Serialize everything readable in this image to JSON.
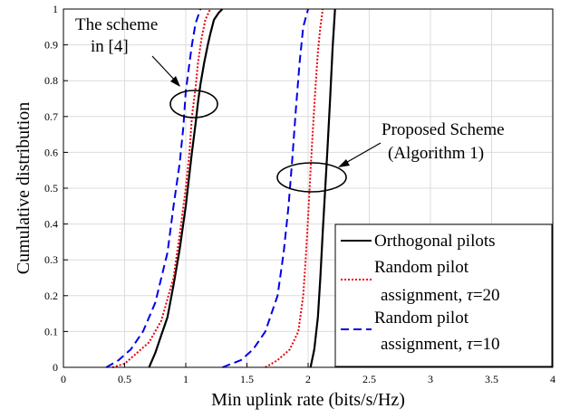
{
  "chart_data": {
    "type": "line",
    "xlabel": "Min uplink rate (bits/s/Hz)",
    "ylabel": "Cumulative distribution",
    "xlim": [
      0,
      4
    ],
    "ylim": [
      0,
      1
    ],
    "x_ticks": [
      "0",
      "0.5",
      "1",
      "1.5",
      "2",
      "2.5",
      "3",
      "3.5",
      "4"
    ],
    "y_ticks": [
      "0",
      "0.1",
      "0.2",
      "0.3",
      "0.4",
      "0.5",
      "0.6",
      "0.7",
      "0.8",
      "0.9",
      "1"
    ],
    "grid": true,
    "legend_position": "bottom-right",
    "legend": [
      {
        "text": "Orthogonal pilots",
        "style": "solid",
        "color": "#000000"
      },
      {
        "line1": "Random pilot",
        "line2_prefix": "assignment, ",
        "tau": "τ",
        "line2_suffix": "=20",
        "style": "dotted",
        "color": "#e8000b"
      },
      {
        "line1": "Random pilot",
        "line2_prefix": "assignment, ",
        "tau": "τ",
        "line2_suffix": "=10",
        "style": "dashed",
        "color": "#0000e8"
      }
    ],
    "annotations": {
      "left": {
        "line1": "The scheme",
        "line2": "in [4]"
      },
      "right": {
        "line1": "Proposed Scheme",
        "line2": "(Algorithm 1)"
      }
    },
    "series": [
      {
        "group": "in [4]",
        "style": "solid",
        "color": "#000000",
        "x": [
          0.7,
          0.75,
          0.8,
          0.85,
          0.9,
          0.95,
          1.0,
          1.02,
          1.05,
          1.08,
          1.1,
          1.12,
          1.15,
          1.18,
          1.2,
          1.23,
          1.27,
          1.3
        ],
        "y": [
          0.0,
          0.04,
          0.09,
          0.14,
          0.23,
          0.33,
          0.45,
          0.51,
          0.6,
          0.68,
          0.74,
          0.79,
          0.85,
          0.9,
          0.93,
          0.97,
          0.99,
          1.0
        ]
      },
      {
        "group": "in [4]",
        "style": "dotted",
        "color": "#e8000b",
        "x": [
          0.4,
          0.5,
          0.6,
          0.7,
          0.8,
          0.9,
          0.95,
          1.0,
          1.03,
          1.05,
          1.08,
          1.1,
          1.13,
          1.16,
          1.2
        ],
        "y": [
          0.0,
          0.01,
          0.04,
          0.07,
          0.13,
          0.25,
          0.37,
          0.5,
          0.6,
          0.7,
          0.78,
          0.85,
          0.92,
          0.97,
          1.0
        ]
      },
      {
        "group": "in [4]",
        "style": "dashed",
        "color": "#0000e8",
        "x": [
          0.35,
          0.45,
          0.55,
          0.65,
          0.75,
          0.85,
          0.9,
          0.95,
          0.98,
          1.0,
          1.03,
          1.05,
          1.08,
          1.12
        ],
        "y": [
          0.0,
          0.02,
          0.05,
          0.1,
          0.18,
          0.32,
          0.45,
          0.57,
          0.67,
          0.77,
          0.85,
          0.9,
          0.96,
          1.0
        ]
      },
      {
        "group": "Proposed",
        "style": "solid",
        "color": "#000000",
        "x": [
          2.02,
          2.05,
          2.08,
          2.1,
          2.12,
          2.14,
          2.16,
          2.18,
          2.2,
          2.22
        ],
        "y": [
          0.0,
          0.05,
          0.14,
          0.25,
          0.38,
          0.5,
          0.62,
          0.75,
          0.89,
          1.0
        ]
      },
      {
        "group": "Proposed",
        "style": "dotted",
        "color": "#e8000b",
        "x": [
          1.65,
          1.75,
          1.85,
          1.92,
          1.96,
          1.98,
          2.0,
          2.02,
          2.04,
          2.06,
          2.08,
          2.1,
          2.12
        ],
        "y": [
          0.0,
          0.02,
          0.05,
          0.1,
          0.2,
          0.3,
          0.42,
          0.55,
          0.67,
          0.78,
          0.88,
          0.95,
          1.0
        ]
      },
      {
        "group": "Proposed",
        "style": "dashed",
        "color": "#0000e8",
        "x": [
          1.3,
          1.45,
          1.55,
          1.65,
          1.75,
          1.8,
          1.84,
          1.87,
          1.9,
          1.93,
          1.96,
          2.0
        ],
        "y": [
          0.0,
          0.02,
          0.05,
          0.1,
          0.2,
          0.32,
          0.45,
          0.58,
          0.72,
          0.85,
          0.95,
          1.0
        ]
      }
    ]
  }
}
